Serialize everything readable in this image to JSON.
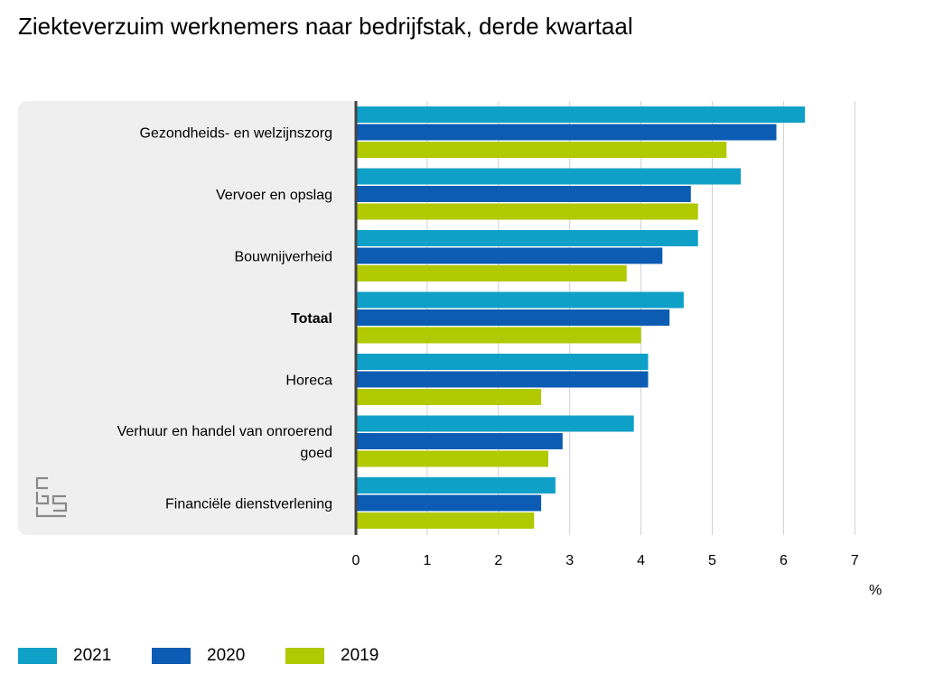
{
  "title": "Ziekteverzuim werknemers naar bedrijfstak, derde kwartaal",
  "unit": "%",
  "logo_text": "cbs",
  "colors": {
    "2021": "#0fa0c8",
    "2020": "#0b5cb2",
    "2019": "#b0c900",
    "axis": "#444444",
    "grid": "#cfcfcf",
    "panel": "#efefef"
  },
  "icons": {
    "logo": "cbs-logo-icon"
  },
  "chart_data": {
    "type": "bar",
    "orientation": "horizontal",
    "title": "Ziekteverzuim werknemers naar bedrijfstak, derde kwartaal",
    "xlabel": "%",
    "ylabel": "",
    "xlim": [
      0,
      7
    ],
    "xticks": [
      "0",
      "1",
      "2",
      "3",
      "4",
      "5",
      "6",
      "7"
    ],
    "grid": true,
    "legend_position": "bottom-left",
    "categories": [
      "Gezondheids- en welzijnszorg",
      "Vervoer en opslag",
      "Bouwnijverheid",
      "Totaal",
      "Horeca",
      "Verhuur en handel van onroerend goed",
      "Financiële dienstverlening"
    ],
    "category_lines": [
      [
        "Gezondheids- en welzijnszorg"
      ],
      [
        "Vervoer en opslag"
      ],
      [
        "Bouwnijverheid"
      ],
      [
        "Totaal"
      ],
      [
        "Horeca"
      ],
      [
        "Verhuur en handel van onroerend",
        "goed"
      ],
      [
        "Financiële dienstverlening"
      ]
    ],
    "bold_category": "Totaal",
    "series": [
      {
        "name": "2021",
        "color": "#0fa0c8",
        "values": [
          6.3,
          5.4,
          4.8,
          4.6,
          4.1,
          3.9,
          2.8
        ]
      },
      {
        "name": "2020",
        "color": "#0b5cb2",
        "values": [
          5.9,
          4.7,
          4.3,
          4.4,
          4.1,
          2.9,
          2.6
        ]
      },
      {
        "name": "2019",
        "color": "#b0c900",
        "values": [
          5.2,
          4.8,
          3.8,
          4.0,
          2.6,
          2.7,
          2.5
        ]
      }
    ]
  }
}
